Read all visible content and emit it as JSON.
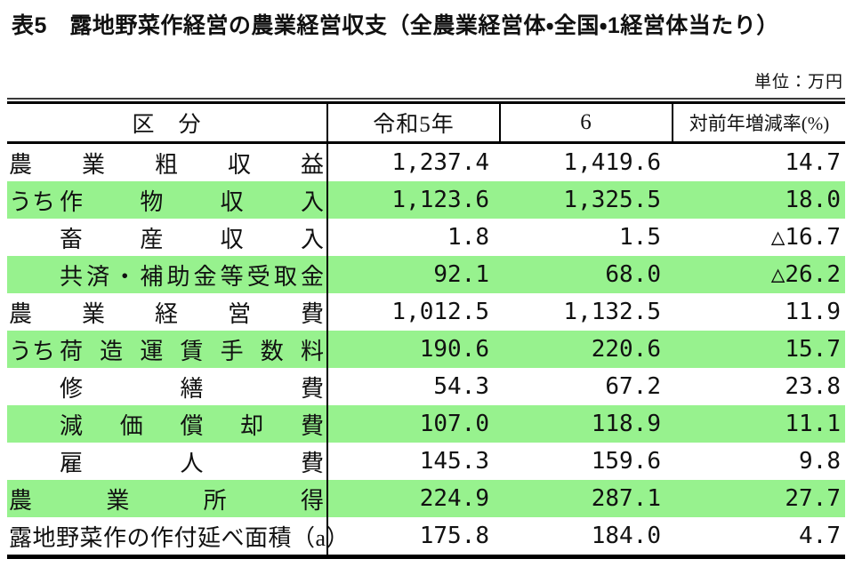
{
  "title": "表5　露地野菜作経営の農業経営収支（全農業経営体・全国・1経営体当たり）",
  "unit_label": "単位：万円",
  "colors": {
    "highlight_green": "#97f28e",
    "border": "#000000"
  },
  "table": {
    "headers": {
      "category": "区　分",
      "year1": "令和5年",
      "year2": "6",
      "rate": "対前年増減率(%)"
    },
    "rows": [
      {
        "prefix": "",
        "indent": false,
        "justify": true,
        "highlight": false,
        "label": "農業粗収益",
        "year1": "1,237.4",
        "year2": "1,419.6",
        "rate": "14.7"
      },
      {
        "prefix": "うち",
        "indent": false,
        "justify": true,
        "highlight": true,
        "label": "作物収入",
        "year1": "1,123.6",
        "year2": "1,325.5",
        "rate": "18.0"
      },
      {
        "prefix": "",
        "indent": true,
        "justify": true,
        "highlight": false,
        "label": "畜産収入",
        "year1": "1.8",
        "year2": "1.5",
        "rate": "△16.7"
      },
      {
        "prefix": "",
        "indent": true,
        "justify": true,
        "highlight": true,
        "label": "共済・補助金等受取金",
        "year1": "92.1",
        "year2": "68.0",
        "rate": "△26.2"
      },
      {
        "prefix": "",
        "indent": false,
        "justify": true,
        "highlight": false,
        "label": "農業経営費",
        "year1": "1,012.5",
        "year2": "1,132.5",
        "rate": "11.9"
      },
      {
        "prefix": "うち",
        "indent": false,
        "justify": true,
        "highlight": true,
        "label": "荷造運賃手数料",
        "year1": "190.6",
        "year2": "220.6",
        "rate": "15.7"
      },
      {
        "prefix": "",
        "indent": true,
        "justify": true,
        "highlight": false,
        "label": "修繕費",
        "year1": "54.3",
        "year2": "67.2",
        "rate": "23.8"
      },
      {
        "prefix": "",
        "indent": true,
        "justify": true,
        "highlight": true,
        "label": "減価償却費",
        "year1": "107.0",
        "year2": "118.9",
        "rate": "11.1"
      },
      {
        "prefix": "",
        "indent": true,
        "justify": true,
        "highlight": false,
        "label": "雇人費",
        "year1": "145.3",
        "year2": "159.6",
        "rate": "9.8"
      },
      {
        "prefix": "",
        "indent": false,
        "justify": true,
        "highlight": true,
        "label": "農業所得",
        "year1": "224.9",
        "year2": "287.1",
        "rate": "27.7"
      },
      {
        "prefix": "",
        "indent": false,
        "justify": false,
        "highlight": false,
        "label": "露地野菜作の作付延べ面積（a）",
        "year1": "175.8",
        "year2": "184.0",
        "rate": "4.7"
      }
    ]
  }
}
